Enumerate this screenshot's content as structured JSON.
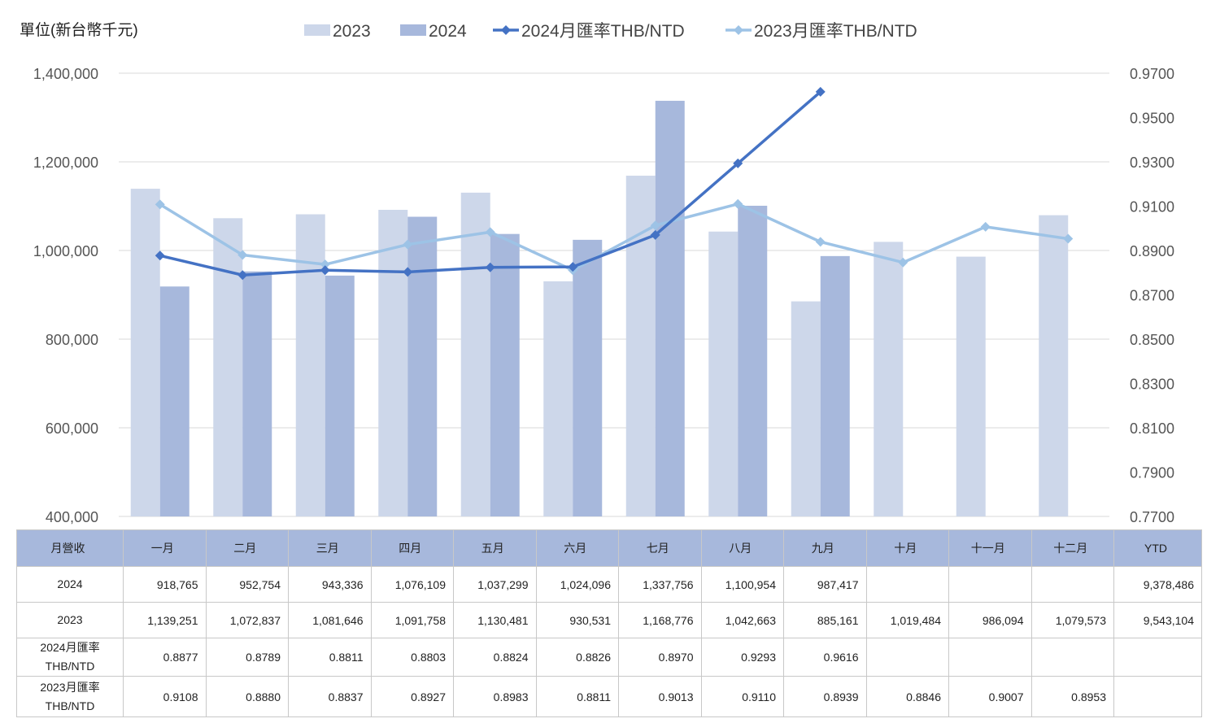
{
  "unit_label": "單位(新台幣千元)",
  "chart_data": {
    "type": "bar",
    "categories": [
      "一月",
      "二月",
      "三月",
      "四月",
      "五月",
      "六月",
      "七月",
      "八月",
      "九月",
      "十月",
      "十一月",
      "十二月"
    ],
    "series": [
      {
        "name": "2023",
        "kind": "bar",
        "axis": "left",
        "color": "#cdd7ea",
        "values": [
          1139251,
          1072837,
          1081646,
          1091758,
          1130481,
          930531,
          1168776,
          1042663,
          885161,
          1019484,
          986094,
          1079573
        ]
      },
      {
        "name": "2024",
        "kind": "bar",
        "axis": "left",
        "color": "#a7b8dc",
        "values": [
          918765,
          952754,
          943336,
          1076109,
          1037299,
          1024096,
          1337756,
          1100954,
          987417,
          null,
          null,
          null
        ]
      },
      {
        "name": "2024月匯率THB/NTD",
        "kind": "line",
        "axis": "right",
        "color": "#4472c4",
        "values": [
          0.8877,
          0.8789,
          0.8811,
          0.8803,
          0.8824,
          0.8826,
          0.897,
          0.9293,
          0.9616,
          null,
          null,
          null
        ]
      },
      {
        "name": "2023月匯率THB/NTD",
        "kind": "line",
        "axis": "right",
        "color": "#9dc3e6",
        "values": [
          0.9108,
          0.888,
          0.8837,
          0.8927,
          0.8983,
          0.8811,
          0.9013,
          0.911,
          0.8939,
          0.8846,
          0.9007,
          0.8953
        ]
      }
    ],
    "ylim": [
      400000,
      1400000
    ],
    "yticks": [
      "400,000",
      "600,000",
      "800,000",
      "1,000,000",
      "1,200,000",
      "1,400,000"
    ],
    "y2lim": [
      0.77,
      0.97
    ],
    "y2ticks": [
      "0.7700",
      "0.7900",
      "0.8100",
      "0.8300",
      "0.8500",
      "0.8700",
      "0.8900",
      "0.9100",
      "0.9300",
      "0.9500",
      "0.9700"
    ],
    "grid": true,
    "legend": "top"
  },
  "table": {
    "header": [
      "月營收",
      "一月",
      "二月",
      "三月",
      "四月",
      "五月",
      "六月",
      "七月",
      "八月",
      "九月",
      "十月",
      "十一月",
      "十二月",
      "YTD"
    ],
    "rows": [
      {
        "label": [
          "2024"
        ],
        "cells": [
          "918,765",
          "952,754",
          "943,336",
          "1,076,109",
          "1,037,299",
          "1,024,096",
          "1,337,756",
          "1,100,954",
          "987,417",
          "",
          "",
          "",
          "9,378,486"
        ]
      },
      {
        "label": [
          "2023"
        ],
        "cells": [
          "1,139,251",
          "1,072,837",
          "1,081,646",
          "1,091,758",
          "1,130,481",
          "930,531",
          "1,168,776",
          "1,042,663",
          "885,161",
          "1,019,484",
          "986,094",
          "1,079,573",
          "9,543,104"
        ]
      },
      {
        "label": [
          "2024月匯率",
          "THB/NTD"
        ],
        "cells": [
          "0.8877",
          "0.8789",
          "0.8811",
          "0.8803",
          "0.8824",
          "0.8826",
          "0.8970",
          "0.9293",
          "0.9616",
          "",
          "",
          "",
          ""
        ]
      },
      {
        "label": [
          "2023月匯率",
          "THB/NTD"
        ],
        "cells": [
          "0.9108",
          "0.8880",
          "0.8837",
          "0.8927",
          "0.8983",
          "0.8811",
          "0.9013",
          "0.9110",
          "0.8939",
          "0.8846",
          "0.9007",
          "0.8953",
          ""
        ]
      }
    ]
  }
}
